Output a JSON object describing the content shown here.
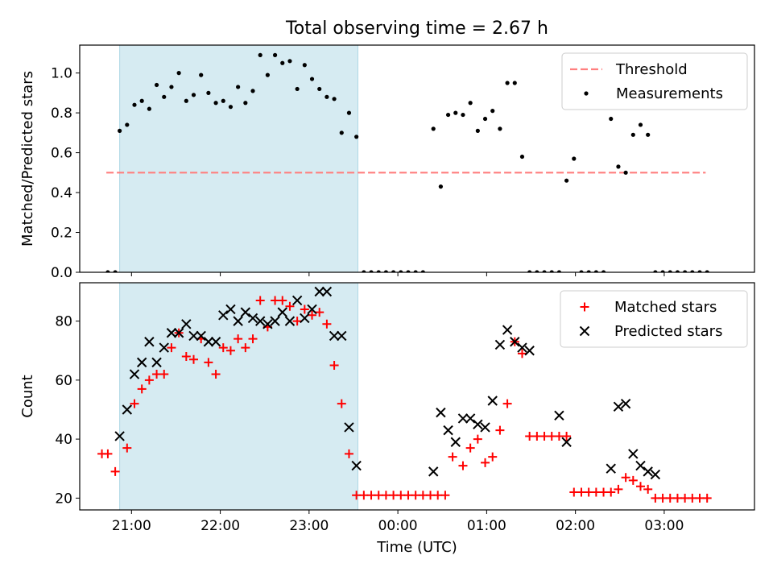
{
  "title": "Total observing time = 2.67 h",
  "colors": {
    "shade": "#add8e6",
    "threshold": "#ff7f7f",
    "measurement": "#000000",
    "matched": "#ff0000",
    "predicted": "#000000"
  },
  "chart_data": [
    {
      "type": "scatter",
      "panel": "top",
      "ylabel": "Matched/Predicted stars",
      "ylim": [
        0,
        1.14
      ],
      "yticks": [
        "0.0",
        "0.2",
        "0.4",
        "0.6",
        "0.8",
        "1.0"
      ],
      "ytick_values": [
        0,
        0.2,
        0.4,
        0.6,
        0.8,
        1.0
      ],
      "legend_position": "top-right",
      "shaded_interval": [
        "20:52",
        "23:33"
      ],
      "threshold": {
        "name": "Threshold",
        "value": 0.5,
        "x_range": [
          "20:43",
          "03:28"
        ],
        "style": "dashed"
      },
      "series": [
        {
          "name": "Measurements",
          "x": [
            "20:44",
            "20:49",
            "20:52",
            "20:57",
            "21:02",
            "21:07",
            "21:12",
            "21:17",
            "21:22",
            "21:27",
            "21:32",
            "21:37",
            "21:42",
            "21:47",
            "21:52",
            "21:57",
            "22:02",
            "22:07",
            "22:12",
            "22:17",
            "22:22",
            "22:27",
            "22:32",
            "22:37",
            "22:42",
            "22:47",
            "22:52",
            "22:57",
            "23:02",
            "23:07",
            "23:12",
            "23:17",
            "23:22",
            "23:27",
            "23:32",
            "23:37",
            "23:42",
            "23:47",
            "23:52",
            "23:57",
            "00:02",
            "00:07",
            "00:12",
            "00:17",
            "00:24",
            "00:29",
            "00:34",
            "00:39",
            "00:44",
            "00:49",
            "00:54",
            "00:59",
            "01:04",
            "01:09",
            "01:14",
            "01:19",
            "01:24",
            "01:29",
            "01:34",
            "01:39",
            "01:44",
            "01:49",
            "01:54",
            "01:59",
            "02:04",
            "02:09",
            "02:14",
            "02:19",
            "02:24",
            "02:29",
            "02:34",
            "02:39",
            "02:44",
            "02:49",
            "02:54",
            "02:59",
            "03:04",
            "03:09",
            "03:14",
            "03:19",
            "03:24",
            "03:29"
          ],
          "y": [
            0,
            0,
            0.71,
            0.74,
            0.84,
            0.86,
            0.82,
            0.94,
            0.88,
            0.93,
            1.0,
            0.86,
            0.89,
            0.99,
            0.9,
            0.85,
            0.86,
            0.83,
            0.93,
            0.85,
            0.91,
            1.09,
            0.99,
            1.09,
            1.05,
            1.06,
            0.92,
            1.04,
            0.97,
            0.92,
            0.88,
            0.87,
            0.7,
            0.8,
            0.68,
            0,
            0,
            0,
            0,
            0,
            0,
            0,
            0,
            0,
            0.72,
            0.43,
            0.79,
            0.8,
            0.79,
            0.85,
            0.71,
            0.77,
            0.81,
            0.72,
            0.95,
            0.95,
            0.58,
            0,
            0,
            0,
            0,
            0,
            0.46,
            0.57,
            0,
            0,
            0,
            0,
            0.77,
            0.53,
            0.5,
            0.69,
            0.74,
            0.69,
            0,
            0,
            0,
            0,
            0,
            0,
            0,
            0
          ]
        }
      ]
    },
    {
      "type": "scatter",
      "panel": "bottom",
      "xlabel": "Time (UTC)",
      "ylabel": "Count",
      "ylim": [
        16,
        93
      ],
      "yticks": [
        "20",
        "40",
        "60",
        "80"
      ],
      "ytick_values": [
        20,
        40,
        60,
        80
      ],
      "xlim": [
        "20:25",
        "04:01"
      ],
      "xticks": [
        "21:00",
        "22:00",
        "23:00",
        "00:00",
        "01:00",
        "02:00",
        "03:00"
      ],
      "legend_position": "top-right",
      "shaded_interval": [
        "20:52",
        "23:33"
      ],
      "series": [
        {
          "name": "Matched stars",
          "marker": "plus",
          "x": [
            "20:40",
            "20:44",
            "20:49",
            "20:57",
            "21:02",
            "21:07",
            "21:12",
            "21:17",
            "21:22",
            "21:27",
            "21:32",
            "21:37",
            "21:42",
            "21:47",
            "21:52",
            "21:57",
            "22:02",
            "22:07",
            "22:12",
            "22:17",
            "22:22",
            "22:27",
            "22:32",
            "22:37",
            "22:42",
            "22:47",
            "22:52",
            "22:57",
            "23:02",
            "23:07",
            "23:12",
            "23:17",
            "23:22",
            "23:27",
            "23:32",
            "23:37",
            "23:42",
            "23:47",
            "23:52",
            "23:57",
            "00:02",
            "00:07",
            "00:12",
            "00:17",
            "00:22",
            "00:27",
            "00:32",
            "00:37",
            "00:44",
            "00:49",
            "00:54",
            "00:59",
            "01:04",
            "01:09",
            "01:14",
            "01:19",
            "01:24",
            "01:29",
            "01:34",
            "01:39",
            "01:44",
            "01:49",
            "01:54",
            "01:59",
            "02:04",
            "02:09",
            "02:14",
            "02:19",
            "02:24",
            "02:29",
            "02:34",
            "02:39",
            "02:44",
            "02:49",
            "02:54",
            "02:59",
            "03:04",
            "03:09",
            "03:14",
            "03:19",
            "03:24",
            "03:29"
          ],
          "y": [
            35,
            35,
            29,
            37,
            52,
            57,
            60,
            62,
            62,
            71,
            76,
            68,
            67,
            74,
            66,
            62,
            71,
            70,
            74,
            71,
            74,
            87,
            78,
            87,
            87,
            85,
            80,
            84,
            82,
            83,
            79,
            65,
            52,
            35,
            21,
            21,
            21,
            21,
            21,
            21,
            21,
            21,
            21,
            21,
            21,
            21,
            21,
            34,
            31,
            37,
            40,
            32,
            34,
            43,
            52,
            73,
            69,
            41,
            41,
            41,
            41,
            41,
            41,
            22,
            22,
            22,
            22,
            22,
            22,
            23,
            27,
            26,
            24,
            23,
            20,
            20,
            20,
            20,
            20,
            20,
            20,
            20
          ]
        },
        {
          "name": "Predicted stars",
          "marker": "x",
          "x": [
            "20:52",
            "20:57",
            "21:02",
            "21:07",
            "21:12",
            "21:17",
            "21:22",
            "21:27",
            "21:32",
            "21:37",
            "21:42",
            "21:47",
            "21:52",
            "21:57",
            "22:02",
            "22:07",
            "22:12",
            "22:17",
            "22:22",
            "22:27",
            "22:32",
            "22:37",
            "22:42",
            "22:47",
            "22:52",
            "22:57",
            "23:02",
            "23:07",
            "23:12",
            "23:17",
            "23:22",
            "23:27",
            "23:32",
            "00:24",
            "00:29",
            "00:34",
            "00:39",
            "00:44",
            "00:49",
            "00:54",
            "00:59",
            "01:04",
            "01:09",
            "01:14",
            "01:19",
            "01:24",
            "01:29",
            "01:49",
            "01:54",
            "02:24",
            "02:29",
            "02:34",
            "02:39",
            "02:44",
            "02:49",
            "02:54"
          ],
          "y": [
            41,
            50,
            62,
            66,
            73,
            66,
            71,
            76,
            76,
            79,
            75,
            75,
            73,
            73,
            82,
            84,
            80,
            83,
            81,
            80,
            79,
            80,
            83,
            80,
            87,
            81,
            84,
            90,
            90,
            75,
            75,
            44,
            31,
            29,
            49,
            43,
            39,
            47,
            47,
            45,
            44,
            53,
            72,
            77,
            73,
            71,
            70,
            48,
            39,
            30,
            51,
            52,
            35,
            31,
            29,
            28
          ]
        }
      ]
    }
  ]
}
